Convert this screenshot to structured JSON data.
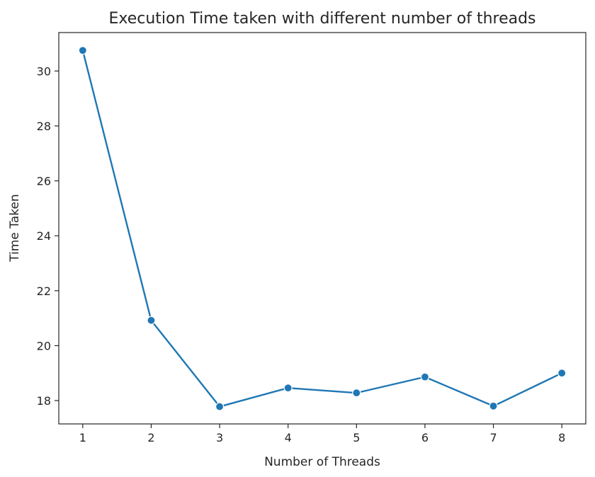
{
  "chart_data": {
    "type": "line",
    "title": "Execution Time taken with different number of threads",
    "xlabel": "Number of Threads",
    "ylabel": "Time Taken",
    "x": [
      1,
      2,
      3,
      4,
      5,
      6,
      7,
      8
    ],
    "series": [
      {
        "values": [
          30.75,
          20.92,
          17.78,
          18.46,
          18.28,
          18.86,
          17.8,
          19.0
        ]
      }
    ],
    "xlim": [
      0.65,
      8.35
    ],
    "ylim": [
      17.15,
      31.4
    ],
    "xticks": [
      "1",
      "2",
      "3",
      "4",
      "5",
      "6",
      "7",
      "8"
    ],
    "yticks": [
      "18",
      "20",
      "22",
      "24",
      "26",
      "28",
      "30"
    ],
    "grid": false,
    "markers": true,
    "colors": {
      "series": "#1f77b4"
    }
  }
}
